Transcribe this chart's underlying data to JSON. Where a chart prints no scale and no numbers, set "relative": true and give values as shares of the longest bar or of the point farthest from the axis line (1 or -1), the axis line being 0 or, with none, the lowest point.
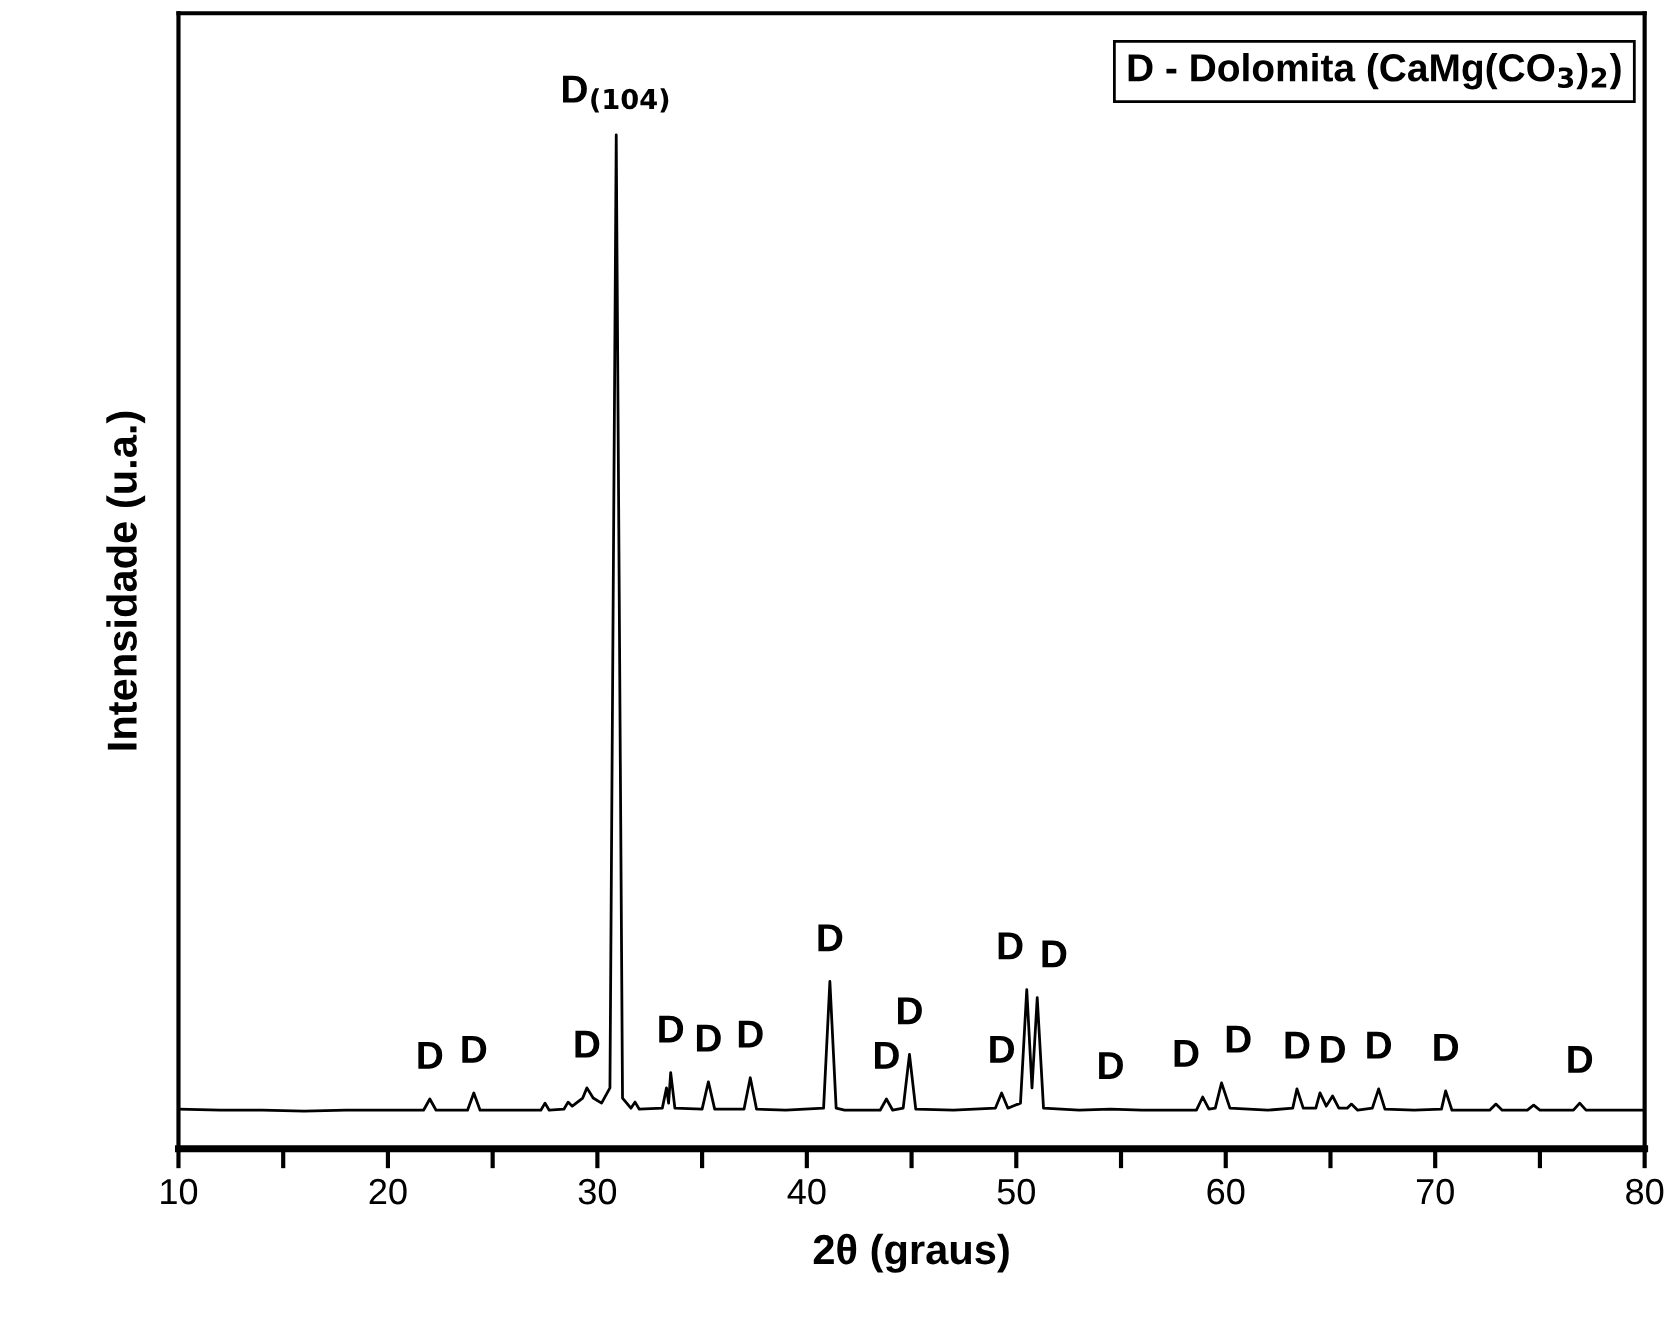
{
  "chart_data": {
    "type": "line",
    "relative": true,
    "xlabel": "2θ (graus)",
    "ylabel": "Intensidade (u.a.)",
    "xlim": [
      10,
      80
    ],
    "xticks": [
      10,
      {
        "value": 15,
        "label": null
      },
      20,
      {
        "value": 25,
        "label": null
      },
      30,
      {
        "value": 35,
        "label": null
      },
      40,
      {
        "value": 45,
        "label": null
      },
      50,
      {
        "value": 55,
        "label": null
      },
      60,
      {
        "value": 65,
        "label": null
      },
      70,
      {
        "value": 75,
        "label": null
      },
      80
    ],
    "tick_labels": "x",
    "grid": false,
    "legend": false,
    "marker": "none",
    "line_style": "solid",
    "series": [
      {
        "color": "#000000",
        "x": [
          10,
          12,
          14,
          16,
          18,
          20,
          21.7,
          22.0,
          22.3,
          23.8,
          24.1,
          24.4,
          26,
          27.3,
          27.5,
          27.7,
          28.4,
          28.6,
          28.8,
          29.3,
          29.5,
          29.8,
          30.2,
          30.6,
          30.9,
          31.2,
          31.6,
          31.8,
          32.0,
          33.1,
          33.3,
          33.4,
          33.5,
          33.7,
          35.0,
          35.3,
          35.6,
          37.0,
          37.3,
          37.6,
          39,
          40.8,
          41.1,
          41.4,
          41.8,
          43.5,
          43.8,
          44.1,
          44.6,
          44.9,
          45.2,
          47,
          49.0,
          49.3,
          49.6,
          50.2,
          50.5,
          50.75,
          51.0,
          51.3,
          53,
          54.5,
          56,
          58.6,
          58.9,
          59.2,
          59.5,
          59.8,
          60.2,
          62,
          63.2,
          63.4,
          63.7,
          64.3,
          64.5,
          64.8,
          65.1,
          65.4,
          65.8,
          66.0,
          66.3,
          67.0,
          67.3,
          67.6,
          69,
          70.3,
          70.5,
          70.8,
          72.6,
          72.9,
          73.2,
          74.4,
          74.7,
          75.0,
          76.6,
          76.9,
          77.2,
          78.5,
          80
        ],
        "values": [
          0.039,
          0.038,
          0.038,
          0.037,
          0.038,
          0.038,
          0.038,
          0.049,
          0.038,
          0.038,
          0.055,
          0.038,
          0.038,
          0.038,
          0.045,
          0.038,
          0.039,
          0.046,
          0.042,
          0.05,
          0.06,
          0.05,
          0.045,
          0.06,
          1,
          0.05,
          0.04,
          0.046,
          0.039,
          0.04,
          0.06,
          0.045,
          0.075,
          0.04,
          0.039,
          0.066,
          0.039,
          0.039,
          0.07,
          0.039,
          0.038,
          0.04,
          0.165,
          0.04,
          0.038,
          0.038,
          0.049,
          0.038,
          0.04,
          0.093,
          0.039,
          0.038,
          0.04,
          0.055,
          0.04,
          0.045,
          0.157,
          0.06,
          0.149,
          0.04,
          0.038,
          0.039,
          0.038,
          0.038,
          0.051,
          0.039,
          0.04,
          0.065,
          0.04,
          0.038,
          0.04,
          0.059,
          0.04,
          0.04,
          0.055,
          0.042,
          0.052,
          0.04,
          0.04,
          0.044,
          0.038,
          0.04,
          0.059,
          0.039,
          0.038,
          0.039,
          0.057,
          0.038,
          0.038,
          0.044,
          0.038,
          0.038,
          0.043,
          0.038,
          0.038,
          0.045,
          0.038,
          0.038,
          0.038
        ]
      }
    ],
    "annotations": [
      {
        "text": "D$_{(104)}$",
        "x": 30.9,
        "y": 1
      },
      {
        "text": "D",
        "x": 22.0,
        "y": 0.049
      },
      {
        "text": "D",
        "x": 24.1,
        "y": 0.055
      },
      {
        "text": "D",
        "x": 29.5,
        "y": 0.06
      },
      {
        "text": "D",
        "x": 33.5,
        "y": 0.075
      },
      {
        "text": "D",
        "x": 35.3,
        "y": 0.066
      },
      {
        "text": "D",
        "x": 37.3,
        "y": 0.07
      },
      {
        "text": "D",
        "x": 41.1,
        "y": 0.165
      },
      {
        "text": "D",
        "x": 43.8,
        "y": 0.049
      },
      {
        "text": "D",
        "x": 44.9,
        "y": 0.093
      },
      {
        "text": "D",
        "x": 49.3,
        "y": 0.055
      },
      {
        "text": "D",
        "x": 50.5,
        "y": 0.157
      },
      {
        "text": "D",
        "x": 51.0,
        "y": 0.149
      },
      {
        "text": "D",
        "x": 54.5,
        "y": 0.039
      },
      {
        "text": "D",
        "x": 58.9,
        "y": 0.051
      },
      {
        "text": "D",
        "x": 59.8,
        "y": 0.065
      },
      {
        "text": "D",
        "x": 63.4,
        "y": 0.059
      },
      {
        "text": "D",
        "x": 65.1,
        "y": 0.055
      },
      {
        "text": "D",
        "x": 67.3,
        "y": 0.059
      },
      {
        "text": "D",
        "x": 70.5,
        "y": 0.057
      },
      {
        "text": "D",
        "x": 76.9,
        "y": 0.045
      },
      "D - Dolomita (CaMg(CO$_{3}$)$_{2}$)"
    ]
  }
}
